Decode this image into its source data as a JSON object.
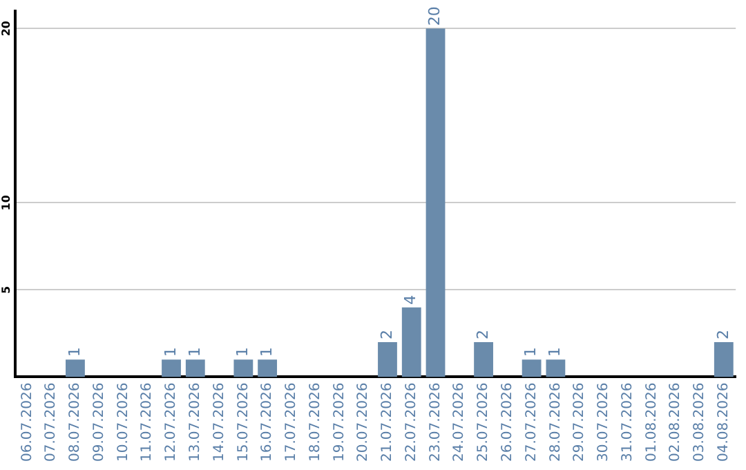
{
  "chart_data": {
    "type": "bar",
    "categories": [
      "06.07.2026",
      "07.07.2026",
      "08.07.2026",
      "09.07.2026",
      "10.07.2026",
      "11.07.2026",
      "12.07.2026",
      "13.07.2026",
      "14.07.2026",
      "15.07.2026",
      "16.07.2026",
      "17.07.2026",
      "18.07.2026",
      "19.07.2026",
      "20.07.2026",
      "21.07.2026",
      "22.07.2026",
      "23.07.2026",
      "24.07.2026",
      "25.07.2026",
      "26.07.2026",
      "27.07.2026",
      "28.07.2026",
      "29.07.2026",
      "30.07.2026",
      "31.07.2026",
      "01.08.2026",
      "02.08.2026",
      "03.08.2026",
      "04.08.2026"
    ],
    "values": [
      0,
      0,
      1,
      0,
      0,
      0,
      1,
      1,
      0,
      1,
      1,
      0,
      0,
      0,
      0,
      2,
      4,
      20,
      0,
      2,
      0,
      1,
      1,
      0,
      0,
      0,
      0,
      0,
      0,
      2
    ],
    "value_labels": [
      null,
      null,
      "1",
      null,
      null,
      null,
      "1",
      "1",
      null,
      "1",
      "1",
      null,
      null,
      null,
      null,
      "2",
      "4",
      "20",
      null,
      "2",
      null,
      "1",
      "1",
      null,
      null,
      null,
      null,
      null,
      null,
      "2"
    ],
    "color": "#6a8bab",
    "ylim": [
      0,
      21
    ],
    "yticks": [
      5,
      10,
      20
    ],
    "grid": "y",
    "legend": false
  }
}
